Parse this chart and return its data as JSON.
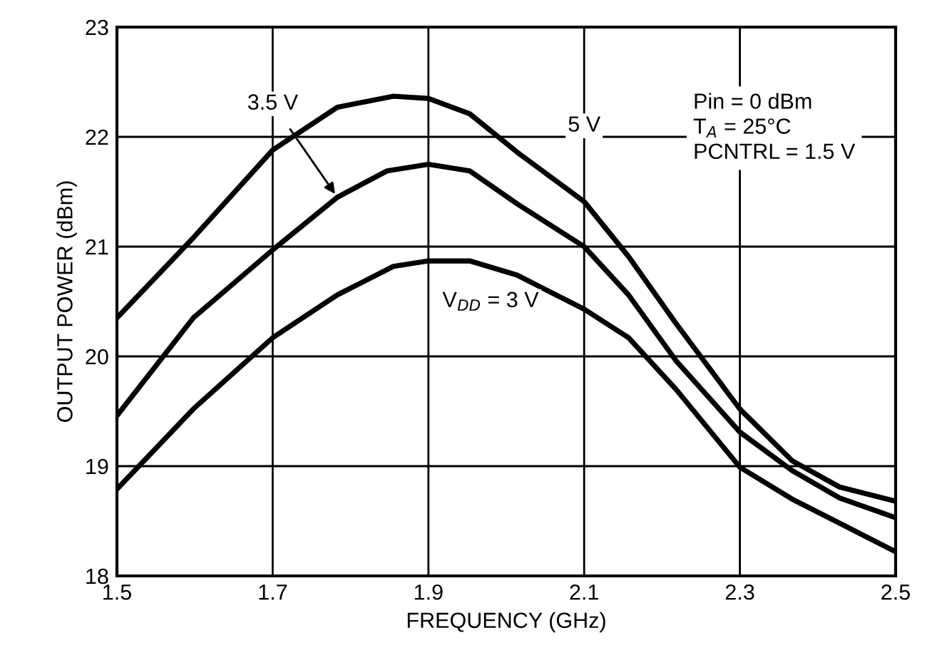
{
  "chart_data": {
    "type": "line",
    "xlabel": "FREQUENCY (GHz)",
    "ylabel": "OUTPUT POWER (dBm)",
    "xlim": [
      1.5,
      2.5
    ],
    "xticks": [
      1.5,
      1.7,
      1.9,
      2.1,
      2.3,
      2.5
    ],
    "ylim": [
      18,
      23
    ],
    "yticks": [
      18,
      19,
      20,
      21,
      22,
      23
    ],
    "grid": true,
    "line_style": "solid",
    "marker": "none",
    "series": [
      {
        "name": "5 V",
        "color": "#000000",
        "x": [
          1.5,
          1.598,
          1.7,
          1.783,
          1.855,
          1.9,
          1.953,
          2.014,
          2.1,
          2.157,
          2.218,
          2.3,
          2.367,
          2.428,
          2.5
        ],
        "values": [
          20.35,
          21.08,
          21.88,
          22.27,
          22.37,
          22.35,
          22.21,
          21.86,
          21.41,
          20.91,
          20.3,
          19.52,
          19.05,
          18.81,
          18.68
        ]
      },
      {
        "name": "3.5 V",
        "color": "#000000",
        "x": [
          1.5,
          1.598,
          1.7,
          1.783,
          1.847,
          1.9,
          1.953,
          2.014,
          2.1,
          2.157,
          2.218,
          2.3,
          2.367,
          2.428,
          2.5
        ],
        "values": [
          19.46,
          20.35,
          20.97,
          21.45,
          21.69,
          21.75,
          21.69,
          21.39,
          21.0,
          20.56,
          19.96,
          19.31,
          18.96,
          18.71,
          18.53
        ]
      },
      {
        "name": "V$_{DD}$ = 3 V",
        "color": "#000000",
        "x": [
          1.5,
          1.598,
          1.7,
          1.783,
          1.855,
          1.9,
          1.953,
          2.014,
          2.1,
          2.157,
          2.218,
          2.3,
          2.367,
          2.428,
          2.5
        ],
        "values": [
          18.79,
          19.52,
          20.17,
          20.56,
          20.82,
          20.87,
          20.87,
          20.74,
          20.43,
          20.17,
          19.7,
          18.99,
          18.7,
          18.48,
          18.22
        ]
      }
    ],
    "annotations": [
      "Pin = 0 dBm\nT$_{A}$ = 25°C\nPCNTRL = 1.5 V"
    ]
  }
}
